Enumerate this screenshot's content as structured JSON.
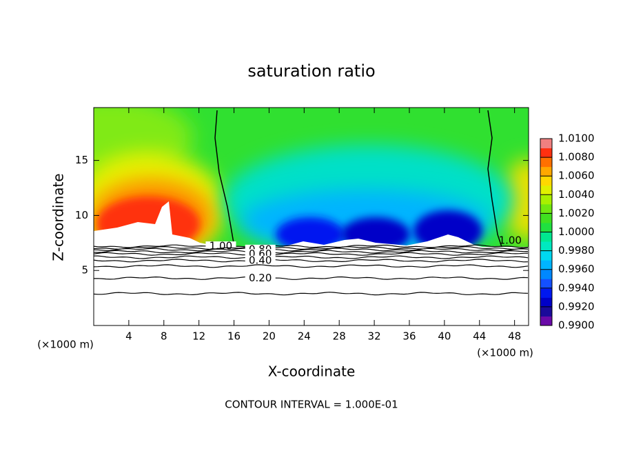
{
  "chart_data": {
    "type": "contour",
    "title": "saturation ratio",
    "xlabel": "X-coordinate",
    "ylabel": "Z-coordinate",
    "x_unit": "(×1000 m)",
    "x_unit_right": "(×1000 m)",
    "footnote": "CONTOUR INTERVAL = 1.000E-01",
    "xlim": [
      0,
      49.6
    ],
    "ylim": [
      0,
      19.8
    ],
    "xticks": [
      4,
      8,
      12,
      16,
      20,
      24,
      28,
      32,
      36,
      40,
      44,
      48
    ],
    "yticks": [
      5,
      10,
      15
    ],
    "contours": {
      "values": [
        1.0,
        0.9,
        0.8,
        0.7,
        0.6,
        0.5,
        0.4,
        0.3,
        0.2,
        0.1
      ],
      "value_labels": [
        "1.00",
        null,
        "0.80",
        null,
        "0.60",
        null,
        "0.40",
        null,
        "0.20",
        null
      ],
      "z": [
        7.2,
        7.05,
        6.9,
        6.7,
        6.5,
        6.2,
        5.9,
        5.4,
        4.3,
        2.9
      ]
    },
    "colorbar": {
      "lim": [
        0.99,
        1.01
      ],
      "colors": [
        "#6a0aa8",
        "#1a0a9a",
        "#0000c8",
        "#0018f0",
        "#1450ff",
        "#0088ff",
        "#00b4ff",
        "#00d8f0",
        "#00e8c0",
        "#00e890",
        "#20e040",
        "#40e020",
        "#70e810",
        "#a8f000",
        "#e0f000",
        "#ffd800",
        "#ffa800",
        "#ff7000",
        "#ff3010",
        "#f08080"
      ],
      "ticks": [
        {
          "value": 0.99,
          "label": "0.9900"
        },
        {
          "value": 0.992,
          "label": "0.9920"
        },
        {
          "value": 0.994,
          "label": "0.9940"
        },
        {
          "value": 0.996,
          "label": "0.9960"
        },
        {
          "value": 0.998,
          "label": "0.9980"
        },
        {
          "value": 1.0,
          "label": "1.0000"
        },
        {
          "value": 1.002,
          "label": "1.0020"
        },
        {
          "value": 1.004,
          "label": "1.0040"
        },
        {
          "value": 1.006,
          "label": "1.0060"
        },
        {
          "value": 1.008,
          "label": "1.0080"
        },
        {
          "value": 1.01,
          "label": "1.0100"
        }
      ]
    }
  }
}
